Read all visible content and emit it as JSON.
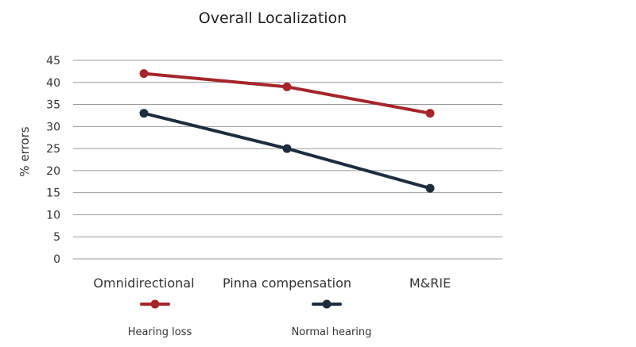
{
  "chart_data": {
    "type": "line",
    "title": "Overall Localization",
    "xlabel": "",
    "ylabel": "% errors",
    "categories": [
      "Omnidirectional",
      "Pinna compensation",
      "M&RIE"
    ],
    "ylim": [
      0,
      45
    ],
    "yticks": [
      0,
      5,
      10,
      15,
      20,
      25,
      30,
      35,
      40,
      45
    ],
    "grid": true,
    "legend_position": "bottom",
    "series": [
      {
        "name": "Hearing loss",
        "values": [
          42,
          39,
          33
        ],
        "color": "#a4262c"
      },
      {
        "name": "Normal hearing",
        "values": [
          33,
          25,
          16
        ],
        "color": "#1d2d3e"
      }
    ]
  }
}
